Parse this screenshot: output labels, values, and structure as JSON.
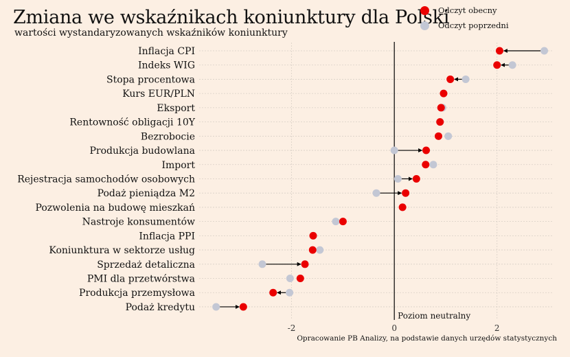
{
  "chart_data": {
    "type": "dumbbell",
    "title": "Zmiana we wskaźnikach koniunktury dla Polski",
    "subtitle": "wartości wystandaryzowanych wskaźników koniunktury",
    "legend": {
      "current": "Odczyt obecny",
      "previous": "Odczyt poprzedni",
      "placement": "top-right"
    },
    "zero_line_label": "Poziom neutralny",
    "source": "Opracowanie PB Analizy, na podstawie danych urzędów statystycznych",
    "xlim": [
      -3.8,
      3.1
    ],
    "xticks": [
      -2,
      0,
      2
    ],
    "grid": true,
    "colors": {
      "current": "#ea0000",
      "previous": "#c3c7d4",
      "background": "#fcefe3"
    },
    "categories": [
      "Inflacja CPI",
      "Indeks WIG",
      "Stopa procentowa",
      "Kurs EUR/PLN",
      "Eksport",
      "Rentowność obligacji 10Y",
      "Bezrobocie",
      "Produkcja budowlana",
      "Import",
      "Rejestracja samochodów osobowych",
      "Podaż pieniądza M2",
      "Pozwolenia na budowę mieszkań",
      "Nastroje konsumentów",
      "Inflacja PPI",
      "Koniunktura w sektorze usług",
      "Sprzedaż detaliczna",
      "PMI dla przetwórstwa",
      "Produkcja przemysłowa",
      "Podaż kredytu"
    ],
    "series": [
      {
        "name": "Odczyt obecny",
        "values": [
          2.05,
          2.0,
          1.09,
          0.96,
          0.91,
          0.89,
          0.86,
          0.62,
          0.61,
          0.43,
          0.22,
          0.16,
          -1.0,
          -1.58,
          -1.59,
          -1.74,
          -1.83,
          -2.36,
          -2.94
        ]
      },
      {
        "name": "Odczyt poprzedni",
        "values": [
          2.92,
          2.3,
          1.39,
          0.96,
          0.94,
          0.89,
          1.05,
          0.0,
          0.76,
          0.07,
          -0.35,
          0.16,
          -1.14,
          -1.58,
          -1.45,
          -2.57,
          -2.03,
          -2.04,
          -3.47
        ]
      }
    ]
  }
}
